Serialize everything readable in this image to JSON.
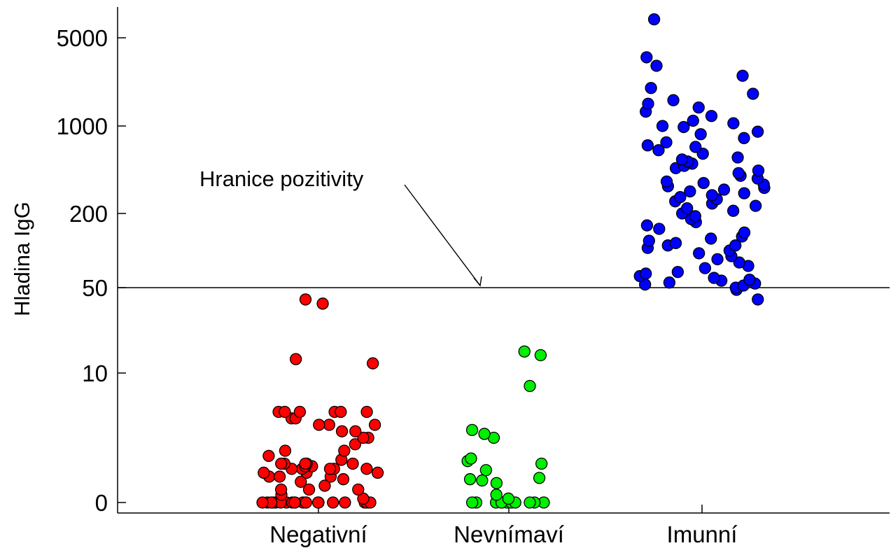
{
  "chart_data": {
    "type": "scatter",
    "ylabel": "Hladina IgG",
    "y_scale": "log-like (0 at base)",
    "y_ticks": [
      "0",
      "10",
      "50",
      "200",
      "1000",
      "5000"
    ],
    "categories": [
      "Negativní",
      "Nevnímaví",
      "Imunní"
    ],
    "cutoff": {
      "value": 50,
      "label": "Hranice pozitivity"
    },
    "grid": false,
    "series": [
      {
        "category": "Negativní",
        "color": "#ff0000",
        "values": [
          0,
          0,
          0,
          0,
          0,
          0,
          0,
          0,
          0,
          0,
          0,
          0,
          0,
          0,
          0,
          0,
          0,
          0,
          0,
          0,
          0,
          0.3,
          0.6,
          1,
          1,
          1,
          1.3,
          1.6,
          1.8,
          2,
          2,
          2,
          2.3,
          2.3,
          2.3,
          2.6,
          2.6,
          2.6,
          2.6,
          2.6,
          2.8,
          2.8,
          2.8,
          3,
          3,
          3,
          3,
          3,
          3.3,
          3.6,
          4,
          4,
          4.5,
          5,
          5,
          5.5,
          5.5,
          6,
          6,
          6,
          6.5,
          6.5,
          7,
          7,
          7,
          7,
          7,
          7,
          12,
          13,
          37,
          40
        ]
      },
      {
        "category": "Nevnímaví",
        "color": "#00ee00",
        "values": [
          0,
          0,
          0,
          0,
          0,
          0,
          0,
          0,
          0,
          0,
          0,
          0.3,
          0.6,
          1.5,
          1.7,
          1.8,
          1.9,
          2.5,
          3,
          3.2,
          3.4,
          5,
          5.3,
          5.6,
          9,
          14,
          15
        ]
      },
      {
        "category": "Imunní",
        "color": "#0000ff",
        "values": [
          40,
          48,
          50,
          52,
          53,
          54,
          55,
          57,
          58,
          60,
          62,
          65,
          67,
          72,
          75,
          80,
          85,
          90,
          95,
          100,
          105,
          110,
          110,
          115,
          120,
          125,
          130,
          140,
          150,
          160,
          170,
          180,
          190,
          200,
          210,
          220,
          230,
          240,
          250,
          260,
          270,
          280,
          290,
          300,
          310,
          320,
          330,
          340,
          350,
          360,
          380,
          400,
          420,
          440,
          460,
          480,
          500,
          520,
          540,
          560,
          600,
          640,
          680,
          700,
          740,
          800,
          860,
          900,
          980,
          1000,
          1050,
          1100,
          1200,
          1300,
          1400,
          1500,
          1600,
          1800,
          2000,
          2500,
          3000,
          3500,
          7000
        ]
      }
    ]
  }
}
